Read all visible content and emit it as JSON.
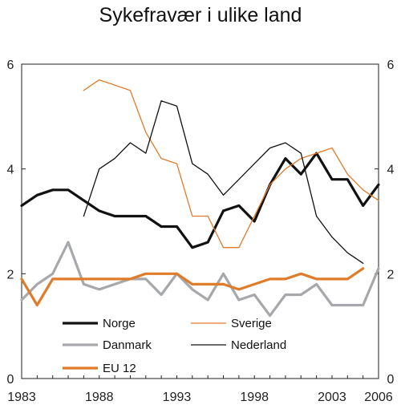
{
  "chart_data": {
    "type": "line",
    "title": "Sykefravær i ulike land",
    "xlabel": "",
    "ylabel": "",
    "xlim": [
      1983,
      2006
    ],
    "ylim": [
      0,
      6
    ],
    "x_ticks": [
      "1983",
      "1988",
      "1993",
      "1998",
      "2003",
      "2006"
    ],
    "y_ticks": [
      "0",
      "2",
      "4",
      "6"
    ],
    "grid": false,
    "legend_position": "bottom-left, inside plot",
    "series": [
      {
        "name": "Norge",
        "color": "#111111",
        "width": "thick",
        "x": [
          1983,
          1984,
          1985,
          1986,
          1987,
          1988,
          1989,
          1990,
          1991,
          1992,
          1993,
          1994,
          1995,
          1996,
          1997,
          1998,
          1999,
          2000,
          2001,
          2002,
          2003,
          2004,
          2005,
          2006
        ],
        "y": [
          3.3,
          3.5,
          3.6,
          3.6,
          3.4,
          3.2,
          3.1,
          3.1,
          3.1,
          2.9,
          2.9,
          2.5,
          2.6,
          3.2,
          3.3,
          3.0,
          3.7,
          4.2,
          3.9,
          4.3,
          3.8,
          3.8,
          3.3,
          3.7
        ]
      },
      {
        "name": "Sverige",
        "color": "#e07b2a",
        "width": "thin",
        "x": [
          1987,
          1988,
          1989,
          1990,
          1991,
          1992,
          1993,
          1994,
          1995,
          1996,
          1997,
          1998,
          1999,
          2000,
          2001,
          2002,
          2003,
          2004,
          2005,
          2006
        ],
        "y": [
          5.5,
          5.7,
          5.6,
          5.5,
          4.7,
          4.2,
          4.1,
          3.1,
          3.1,
          2.5,
          2.5,
          3.1,
          3.7,
          4.0,
          4.2,
          4.3,
          4.4,
          3.9,
          3.6,
          3.4
        ]
      },
      {
        "name": "Danmark",
        "color": "#a6a8ab",
        "width": "thick",
        "x": [
          1983,
          1984,
          1985,
          1986,
          1987,
          1988,
          1989,
          1990,
          1991,
          1992,
          1993,
          1994,
          1995,
          1996,
          1997,
          1998,
          1999,
          2000,
          2001,
          2002,
          2003,
          2004,
          2005,
          2006
        ],
        "y": [
          1.5,
          1.8,
          2.0,
          2.6,
          1.8,
          1.7,
          1.8,
          1.9,
          1.9,
          1.6,
          2.0,
          1.7,
          1.5,
          2.0,
          1.5,
          1.6,
          1.2,
          1.6,
          1.6,
          1.8,
          1.4,
          1.4,
          1.4,
          2.1
        ]
      },
      {
        "name": "Nederland",
        "color": "#111111",
        "width": "thin",
        "x": [
          1987,
          1988,
          1989,
          1990,
          1991,
          1992,
          1993,
          1994,
          1995,
          1996,
          1997,
          1998,
          1999,
          2000,
          2001,
          2002,
          2003,
          2004,
          2005
        ],
        "y": [
          3.1,
          4.0,
          4.2,
          4.5,
          4.3,
          5.3,
          5.2,
          4.1,
          3.9,
          3.5,
          3.8,
          4.1,
          4.4,
          4.5,
          4.3,
          3.1,
          2.7,
          2.4,
          2.2
        ]
      },
      {
        "name": "EU 12",
        "color": "#e07b2a",
        "width": "thick",
        "x": [
          1983,
          1984,
          1985,
          1986,
          1987,
          1988,
          1989,
          1990,
          1991,
          1992,
          1993,
          1994,
          1995,
          1996,
          1997,
          1998,
          1999,
          2000,
          2001,
          2002,
          2003,
          2004,
          2005
        ],
        "y": [
          1.9,
          1.4,
          1.9,
          1.9,
          1.9,
          1.9,
          1.9,
          1.9,
          2.0,
          2.0,
          2.0,
          1.8,
          1.8,
          1.8,
          1.7,
          1.8,
          1.9,
          1.9,
          2.0,
          1.9,
          1.9,
          1.9,
          2.1
        ]
      }
    ]
  }
}
